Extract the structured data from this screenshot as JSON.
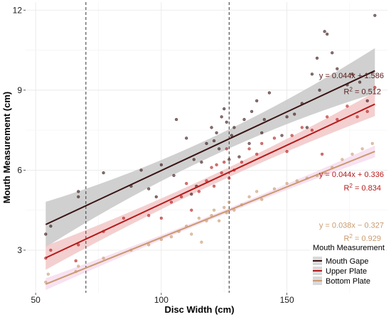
{
  "chart_data": {
    "type": "scatter",
    "xlabel": "Disc Width (cm)",
    "ylabel": "Mouth Measurement (cm)",
    "xlim": [
      46,
      190
    ],
    "ylim": [
      1.4,
      12.3
    ],
    "xticks": [
      50,
      100,
      150
    ],
    "yticks": [
      3,
      6,
      9,
      12
    ],
    "grid": true,
    "vlines": [
      70,
      127
    ],
    "legend": {
      "title": "Mouth Measurement",
      "position": "bottom-right",
      "entries": [
        "Mouth Gape",
        "Upper Plate",
        "Bottom Plate"
      ]
    },
    "series": [
      {
        "name": "Mouth Gape",
        "color": "#3a1414",
        "line": {
          "slope": 0.044,
          "intercept": 1.586,
          "x_range": [
            54,
            185
          ]
        },
        "equation": "y = 0.044x + 1.586",
        "r2_label": "R",
        "r2_value": "= 0.512",
        "points": [
          [
            54,
            3.6
          ],
          [
            56,
            3.9
          ],
          [
            67,
            5.0
          ],
          [
            67,
            5.2
          ],
          [
            77,
            5.9
          ],
          [
            88,
            5.4
          ],
          [
            92,
            6.0
          ],
          [
            95,
            5.3
          ],
          [
            98,
            5.0
          ],
          [
            100,
            6.2
          ],
          [
            105,
            5.8
          ],
          [
            106,
            7.9
          ],
          [
            110,
            7.2
          ],
          [
            112,
            5.1
          ],
          [
            113,
            6.4
          ],
          [
            114,
            5.4
          ],
          [
            116,
            6.3
          ],
          [
            118,
            7.0
          ],
          [
            120,
            7.6
          ],
          [
            121,
            7.1
          ],
          [
            122,
            7.4
          ],
          [
            123,
            6.8
          ],
          [
            124,
            8.0
          ],
          [
            125,
            8.3
          ],
          [
            126,
            7.8
          ],
          [
            127,
            6.4
          ],
          [
            128,
            7.3
          ],
          [
            129,
            7.6
          ],
          [
            131,
            6.5
          ],
          [
            133,
            7.9
          ],
          [
            135,
            7.0
          ],
          [
            136,
            8.2
          ],
          [
            138,
            8.6
          ],
          [
            140,
            7.4
          ],
          [
            141,
            7.9
          ],
          [
            143,
            8.9
          ],
          [
            148,
            7.3
          ],
          [
            150,
            8.0
          ],
          [
            153,
            8.1
          ],
          [
            156,
            8.5
          ],
          [
            158,
            7.6
          ],
          [
            160,
            9.6
          ],
          [
            162,
            10.2
          ],
          [
            163,
            9.0
          ],
          [
            165,
            11.2
          ],
          [
            166,
            11.1
          ],
          [
            168,
            10.4
          ],
          [
            170,
            9.8
          ],
          [
            174,
            9.2
          ],
          [
            176,
            9.6
          ],
          [
            179,
            9.3
          ],
          [
            182,
            8.6
          ],
          [
            185,
            11.8
          ]
        ]
      },
      {
        "name": "Upper Plate",
        "color": "#b51a1a",
        "line": {
          "slope": 0.044,
          "intercept": 0.336,
          "x_range": [
            54,
            185
          ]
        },
        "equation": "y = 0.044x + 0.336",
        "r2_label": "R",
        "r2_value": "= 0.834",
        "points": [
          [
            54,
            2.7
          ],
          [
            56,
            3.0
          ],
          [
            66,
            2.6
          ],
          [
            67,
            3.2
          ],
          [
            77,
            3.7
          ],
          [
            85,
            4.2
          ],
          [
            95,
            4.3
          ],
          [
            100,
            4.2
          ],
          [
            104,
            4.8
          ],
          [
            108,
            5.0
          ],
          [
            110,
            5.5
          ],
          [
            112,
            4.5
          ],
          [
            115,
            5.2
          ],
          [
            118,
            5.6
          ],
          [
            120,
            6.1
          ],
          [
            121,
            5.4
          ],
          [
            122,
            6.2
          ],
          [
            124,
            5.9
          ],
          [
            125,
            6.3
          ],
          [
            126,
            6.8
          ],
          [
            127,
            5.7
          ],
          [
            129,
            6.0
          ],
          [
            132,
            6.3
          ],
          [
            135,
            6.8
          ],
          [
            138,
            6.6
          ],
          [
            140,
            7.0
          ],
          [
            145,
            7.2
          ],
          [
            150,
            6.7
          ],
          [
            152,
            7.3
          ],
          [
            156,
            7.6
          ],
          [
            160,
            7.5
          ],
          [
            164,
            6.6
          ],
          [
            166,
            8.0
          ],
          [
            170,
            7.9
          ],
          [
            174,
            8.4
          ],
          [
            178,
            8.0
          ],
          [
            182,
            8.2
          ],
          [
            185,
            9.1
          ]
        ]
      },
      {
        "name": "Bottom Plate",
        "color": "#c99a6e",
        "line": {
          "slope": 0.038,
          "intercept": -0.327,
          "x_range": [
            54,
            185
          ]
        },
        "equation": "y = 0.038x − 0.327",
        "r2_label": "R",
        "r2_value": "= 0.929",
        "points": [
          [
            54,
            1.8
          ],
          [
            55,
            2.1
          ],
          [
            66,
            2.2
          ],
          [
            67,
            2.4
          ],
          [
            77,
            2.7
          ],
          [
            88,
            3.0
          ],
          [
            95,
            3.2
          ],
          [
            100,
            3.4
          ],
          [
            104,
            3.5
          ],
          [
            107,
            3.7
          ],
          [
            110,
            3.9
          ],
          [
            112,
            3.6
          ],
          [
            115,
            4.2
          ],
          [
            116,
            3.3
          ],
          [
            118,
            4.1
          ],
          [
            120,
            4.3
          ],
          [
            121,
            4.5
          ],
          [
            123,
            4.1
          ],
          [
            125,
            4.6
          ],
          [
            126,
            4.4
          ],
          [
            127,
            4.8
          ],
          [
            129,
            4.5
          ],
          [
            132,
            4.7
          ],
          [
            135,
            5.0
          ],
          [
            138,
            5.2
          ],
          [
            140,
            4.9
          ],
          [
            145,
            5.3
          ],
          [
            150,
            5.5
          ],
          [
            154,
            5.6
          ],
          [
            158,
            5.7
          ],
          [
            162,
            5.8
          ],
          [
            165,
            5.9
          ],
          [
            168,
            6.1
          ],
          [
            172,
            6.4
          ],
          [
            176,
            6.6
          ],
          [
            180,
            6.8
          ],
          [
            184,
            7.0
          ]
        ]
      }
    ]
  }
}
